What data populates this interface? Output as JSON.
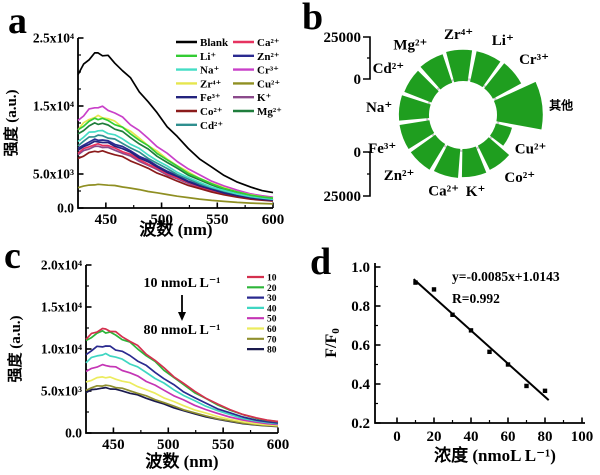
{
  "panels": {
    "a": {
      "letter": "a"
    },
    "b": {
      "letter": "b"
    },
    "c": {
      "letter": "c"
    },
    "d": {
      "letter": "d"
    }
  },
  "chart_data": [
    {
      "id": "a",
      "type": "line",
      "xlabel": "波数 (nm)",
      "ylabel": "强度 (a.u.)",
      "xlim": [
        425,
        600
      ],
      "ylim": [
        0,
        25000
      ],
      "xticks": [
        {
          "v": 450,
          "label": "450"
        },
        {
          "v": 500,
          "label": "500"
        },
        {
          "v": 550,
          "label": "550"
        },
        {
          "v": 600,
          "label": "600"
        }
      ],
      "xminor": [
        475,
        525,
        575
      ],
      "yticks": [
        {
          "v": 0,
          "label": "0.0"
        },
        {
          "v": 5000,
          "label": "5.0x10³"
        },
        {
          "v": 15000,
          "label": "1.5x10⁴"
        },
        {
          "v": 25000,
          "label": "2.5x10⁴"
        }
      ],
      "yminor": [
        2500,
        7500,
        10000,
        12500,
        17500,
        20000,
        22500
      ],
      "baseline": 350,
      "shape_x": [
        425,
        430,
        435,
        440,
        443,
        447,
        452,
        458,
        465,
        472,
        480,
        488,
        496,
        505,
        514,
        524,
        534,
        545,
        556,
        568,
        580,
        590,
        600
      ],
      "shape_y": [
        0.86,
        0.92,
        0.97,
        0.995,
        1.0,
        0.995,
        0.975,
        0.94,
        0.89,
        0.83,
        0.755,
        0.68,
        0.605,
        0.525,
        0.45,
        0.375,
        0.31,
        0.25,
        0.2,
        0.155,
        0.12,
        0.1,
        0.085
      ],
      "series": [
        {
          "name": "Blank",
          "color": "#000000",
          "peak": 22400
        },
        {
          "name": "Li⁺",
          "color": "#33cc33",
          "peak": 12800
        },
        {
          "name": "Na⁺",
          "color": "#45ddc5",
          "peak": 11000
        },
        {
          "name": "Zr⁴⁺",
          "color": "#e6e64e",
          "peak": 13100
        },
        {
          "name": "Fe³⁺",
          "color": "#23237d",
          "peak": 9400
        },
        {
          "name": "Co²⁺",
          "color": "#8b1b1b",
          "peak": 8000
        },
        {
          "name": "Cd²⁺",
          "color": "#2f8f8f",
          "peak": 10300
        },
        {
          "name": "Ca²⁺",
          "color": "#e63360",
          "peak": 9000
        },
        {
          "name": "Zn²⁺",
          "color": "#2a2a90",
          "peak": 9700
        },
        {
          "name": "Cr³⁺",
          "color": "#c940c9",
          "peak": 14500
        },
        {
          "name": "Cu²⁺",
          "color": "#8f8f22",
          "peak": 3100
        },
        {
          "name": "K⁺",
          "color": "#8b4a8b",
          "peak": 8700
        },
        {
          "name": "Mg²⁺",
          "color": "#1f7d3c",
          "peak": 12100
        }
      ],
      "legend": {
        "col1": [
          "Blank",
          "Li⁺",
          "Na⁺",
          "Zr⁴⁺",
          "Fe³⁺",
          "Co²⁺",
          "Cd²⁺"
        ],
        "col2": [
          "Ca²⁺",
          "Zn²⁺",
          "Cr³⁺",
          "Cu²⁺",
          "K⁺",
          "Mg²⁺"
        ]
      }
    },
    {
      "id": "b",
      "type": "polar-bar",
      "bar_color": "#1f9e1f",
      "ring_color": "#c8c8c8",
      "rmax": 25000,
      "axis_top": {
        "top_label": "25000",
        "bottom_label": "0"
      },
      "axis_bottom": {
        "top_label": "0",
        "bottom_label": "25000"
      },
      "bars": [
        {
          "label": "其他",
          "value": 22000,
          "angle": 7,
          "span": 35
        },
        {
          "label": "Cr³⁺",
          "value": 15500,
          "angle": 40,
          "span": 23
        },
        {
          "label": "Li⁺",
          "value": 15000,
          "angle": 66.5,
          "span": 23
        },
        {
          "label": "Zr⁴⁺",
          "value": 15000,
          "angle": 93.5,
          "span": 23
        },
        {
          "label": "Mg²⁺",
          "value": 14500,
          "angle": 120,
          "span": 23
        },
        {
          "label": "Cd²⁺",
          "value": 14000,
          "angle": 147,
          "span": 23
        },
        {
          "label": "Na⁺",
          "value": 14500,
          "angle": 173.5,
          "span": 23
        },
        {
          "label": "Fe³⁺",
          "value": 14500,
          "angle": 200.5,
          "span": 23
        },
        {
          "label": "Zn²⁺",
          "value": 14500,
          "angle": 227,
          "span": 23
        },
        {
          "label": "Ca²⁺",
          "value": 14000,
          "angle": 254,
          "span": 23
        },
        {
          "label": "K⁺",
          "value": 13500,
          "angle": 280.5,
          "span": 23
        },
        {
          "label": "Co²⁺",
          "value": 13000,
          "angle": 307.5,
          "span": 23
        },
        {
          "label": "Cu²⁺",
          "value": 8000,
          "angle": 334,
          "span": 23
        }
      ]
    },
    {
      "id": "c",
      "type": "line",
      "xlabel": "波数 (nm)",
      "ylabel": "强度 (a.u.)",
      "xlim": [
        425,
        600
      ],
      "ylim": [
        0,
        20000
      ],
      "xticks": [
        {
          "v": 450,
          "label": "450"
        },
        {
          "v": 500,
          "label": "500"
        },
        {
          "v": 550,
          "label": "550"
        },
        {
          "v": 600,
          "label": "600"
        }
      ],
      "xminor": [
        475,
        525,
        575
      ],
      "yticks": [
        {
          "v": 0,
          "label": "0.0"
        },
        {
          "v": 5000,
          "label": "5.0x10³"
        },
        {
          "v": 10000,
          "label": "1.0x10⁴"
        },
        {
          "v": 15000,
          "label": "1.5x10⁴"
        },
        {
          "v": 20000,
          "label": "2.0x10⁴"
        }
      ],
      "yminor": [
        2500,
        7500,
        12500,
        17500
      ],
      "baseline": 350,
      "shape_x": [
        425,
        430,
        435,
        440,
        443,
        447,
        452,
        458,
        465,
        472,
        480,
        488,
        496,
        505,
        514,
        524,
        534,
        545,
        556,
        568,
        580,
        590,
        600
      ],
      "shape_y": [
        0.9,
        0.95,
        0.985,
        1.0,
        1.0,
        0.99,
        0.965,
        0.93,
        0.885,
        0.83,
        0.76,
        0.69,
        0.615,
        0.535,
        0.46,
        0.385,
        0.32,
        0.255,
        0.205,
        0.155,
        0.12,
        0.1,
        0.085
      ],
      "annotation": {
        "top": "10 nmoL L⁻¹",
        "bottom": "80 nmoL L⁻¹"
      },
      "series": [
        {
          "name": "10",
          "color": "#d4304e",
          "peak": 12000
        },
        {
          "name": "20",
          "color": "#2eb53a",
          "peak": 11700
        },
        {
          "name": "30",
          "color": "#2a2a8f",
          "peak": 10000
        },
        {
          "name": "40",
          "color": "#3fd6c2",
          "peak": 9000
        },
        {
          "name": "50",
          "color": "#c435b5",
          "peak": 7700
        },
        {
          "name": "60",
          "color": "#ecec5e",
          "peak": 6300
        },
        {
          "name": "70",
          "color": "#8f8f2e",
          "peak": 5300
        },
        {
          "name": "80",
          "color": "#1a1a4e",
          "peak": 5000
        }
      ]
    },
    {
      "id": "d",
      "type": "scatter",
      "xlabel": "浓度 (nmoL L⁻¹)",
      "ylabel_main": "F/F",
      "ylabel_sub": "0",
      "xlim": [
        0,
        100
      ],
      "ylim": [
        0.2,
        1.0
      ],
      "xticks": [
        {
          "v": 0,
          "label": "0"
        },
        {
          "v": 20,
          "label": "20"
        },
        {
          "v": 40,
          "label": "40"
        },
        {
          "v": 60,
          "label": "60"
        },
        {
          "v": 80,
          "label": "80"
        },
        {
          "v": 100,
          "label": "100"
        }
      ],
      "xminor": [
        10,
        30,
        50,
        70,
        90
      ],
      "yticks": [
        {
          "v": 0.2,
          "label": "0.2"
        },
        {
          "v": 0.4,
          "label": "0.4"
        },
        {
          "v": 0.6,
          "label": "0.6"
        },
        {
          "v": 0.8,
          "label": "0.8"
        },
        {
          "v": 1.0,
          "label": "1.0"
        }
      ],
      "yminor": [
        0.3,
        0.5,
        0.7,
        0.9
      ],
      "points": [
        [
          10,
          0.92
        ],
        [
          20,
          0.885
        ],
        [
          30,
          0.755
        ],
        [
          40,
          0.675
        ],
        [
          50,
          0.565
        ],
        [
          60,
          0.5
        ],
        [
          70,
          0.39
        ],
        [
          80,
          0.365
        ]
      ],
      "fit": {
        "slope": -0.0085,
        "intercept": 1.0143,
        "x_start": 9,
        "x_end": 82,
        "equation": "y=-0.0085x+1.0143",
        "r": "R=0.992"
      },
      "point_color": "#000000",
      "line_color": "#000000"
    }
  ]
}
